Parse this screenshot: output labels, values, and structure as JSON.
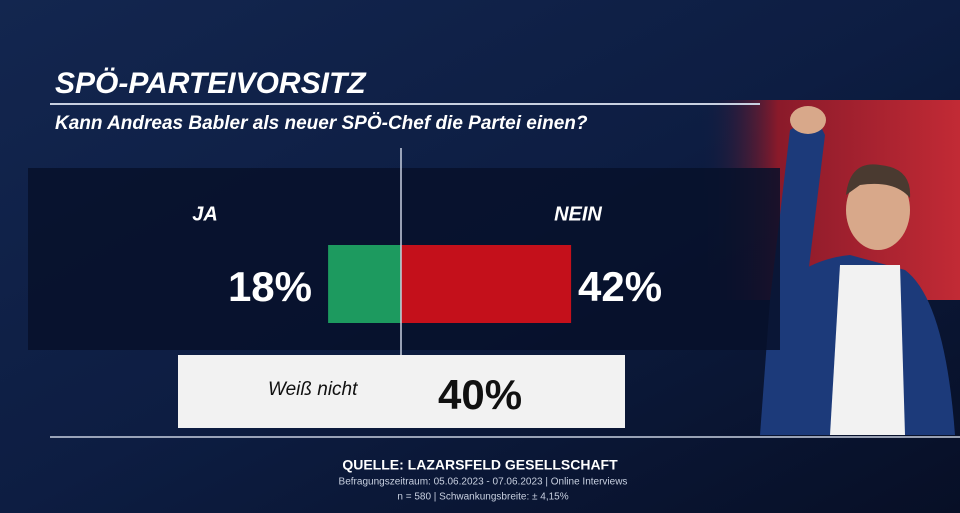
{
  "chart_data": {
    "type": "bar",
    "title": "SPÖ-PARTEIVORSITZ",
    "subtitle": "Kann Andreas Babler als neuer SPÖ-Chef die Partei einen?",
    "categories": [
      "JA",
      "NEIN",
      "Weiß nicht"
    ],
    "values": [
      18,
      42,
      40
    ],
    "value_labels": [
      "18%",
      "42%",
      "40%"
    ],
    "colors": [
      "#1d9a5f",
      "#c4101b",
      "#f2f2f2"
    ],
    "source": "QUELLE:  LAZARSFELD GESELLSCHAFT",
    "notes": [
      "Befragungszeitraum: 05.06.2023 - 07.06.2023 | Online Interviews",
      "n = 580 | Schwankungsbreite: ± 4,15%"
    ]
  }
}
